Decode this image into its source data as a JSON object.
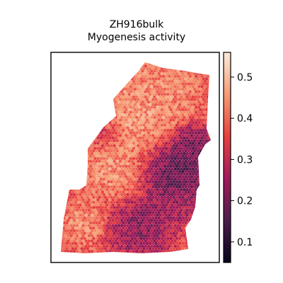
{
  "chart_data": {
    "type": "heatmap",
    "subtype": "spatial-hexbin",
    "title": "ZH916bulk",
    "subtitle": "Myogenesis activity",
    "xlabel": "",
    "ylabel": "",
    "axis_ticks_shown": false,
    "grid": false,
    "colormap": "rocket",
    "colorbar": {
      "position": "right",
      "range": [
        0.05,
        0.56
      ],
      "ticks": [
        0.1,
        0.2,
        0.3,
        0.4,
        0.5
      ],
      "tick_labels": [
        "0.1",
        "0.2",
        "0.3",
        "0.4",
        "0.5"
      ],
      "colors": [
        "#03051a",
        "#4c1d4b",
        "#a11a5b",
        "#e83f3f",
        "#f69c73",
        "#faebdd"
      ]
    },
    "regions": [
      {
        "region": "upper-central tissue",
        "approx_value": 0.45
      },
      {
        "region": "top-left edge",
        "approx_value": 0.35
      },
      {
        "region": "right-center (low activity)",
        "approx_value": 0.15
      },
      {
        "region": "bottom-center",
        "approx_value": 0.2
      },
      {
        "region": "bottom-left lobe",
        "approx_value": 0.42
      }
    ]
  }
}
